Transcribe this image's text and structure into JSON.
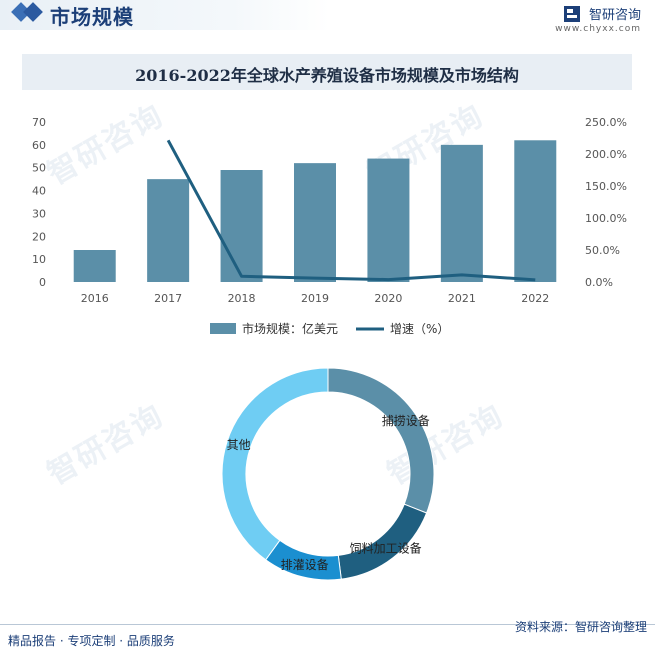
{
  "header": {
    "title": "市场规模",
    "brand_name": "智研咨询",
    "brand_url": "www.chyxx.com"
  },
  "watermark": "智研咨询",
  "chart_data": [
    {
      "type": "bar",
      "title": "2016-2022年全球水产养殖设备市场规模及市场结构",
      "categories": [
        "2016",
        "2017",
        "2018",
        "2019",
        "2020",
        "2021",
        "2022"
      ],
      "series": [
        {
          "name": "市场规模：亿美元",
          "type": "bar",
          "axis": "left",
          "color": "#5b8fa8",
          "values": [
            14,
            45,
            49,
            52,
            54,
            60,
            62
          ]
        },
        {
          "name": "增速（%）",
          "type": "line",
          "axis": "right",
          "color": "#1f5f80",
          "values": [
            null,
            221.4,
            8.9,
            6.1,
            3.8,
            11.1,
            3.3
          ]
        }
      ],
      "y_left": {
        "ylim": [
          0,
          70
        ],
        "ticks": [
          "0",
          "10",
          "20",
          "30",
          "40",
          "50",
          "60",
          "70"
        ]
      },
      "y_right": {
        "ylim": [
          0,
          250
        ],
        "ticks": [
          "0.0%",
          "50.0%",
          "100.0%",
          "150.0%",
          "200.0%",
          "250.0%"
        ]
      },
      "legend_position": "bottom"
    },
    {
      "type": "pie",
      "style": "donut",
      "slices": [
        {
          "label": "捕捞设备",
          "value": 31,
          "color": "#5b8fa8"
        },
        {
          "label": "饲料加工设备",
          "value": 17,
          "color": "#1f5f80"
        },
        {
          "label": "排灌设备",
          "value": 12,
          "color": "#1b8fd0"
        },
        {
          "label": "其他",
          "value": 40,
          "color": "#6fcdf3"
        }
      ]
    }
  ],
  "footer": {
    "left": "精品报告 · 专项定制 · 品质服务",
    "right": "资料来源：智研咨询整理"
  }
}
